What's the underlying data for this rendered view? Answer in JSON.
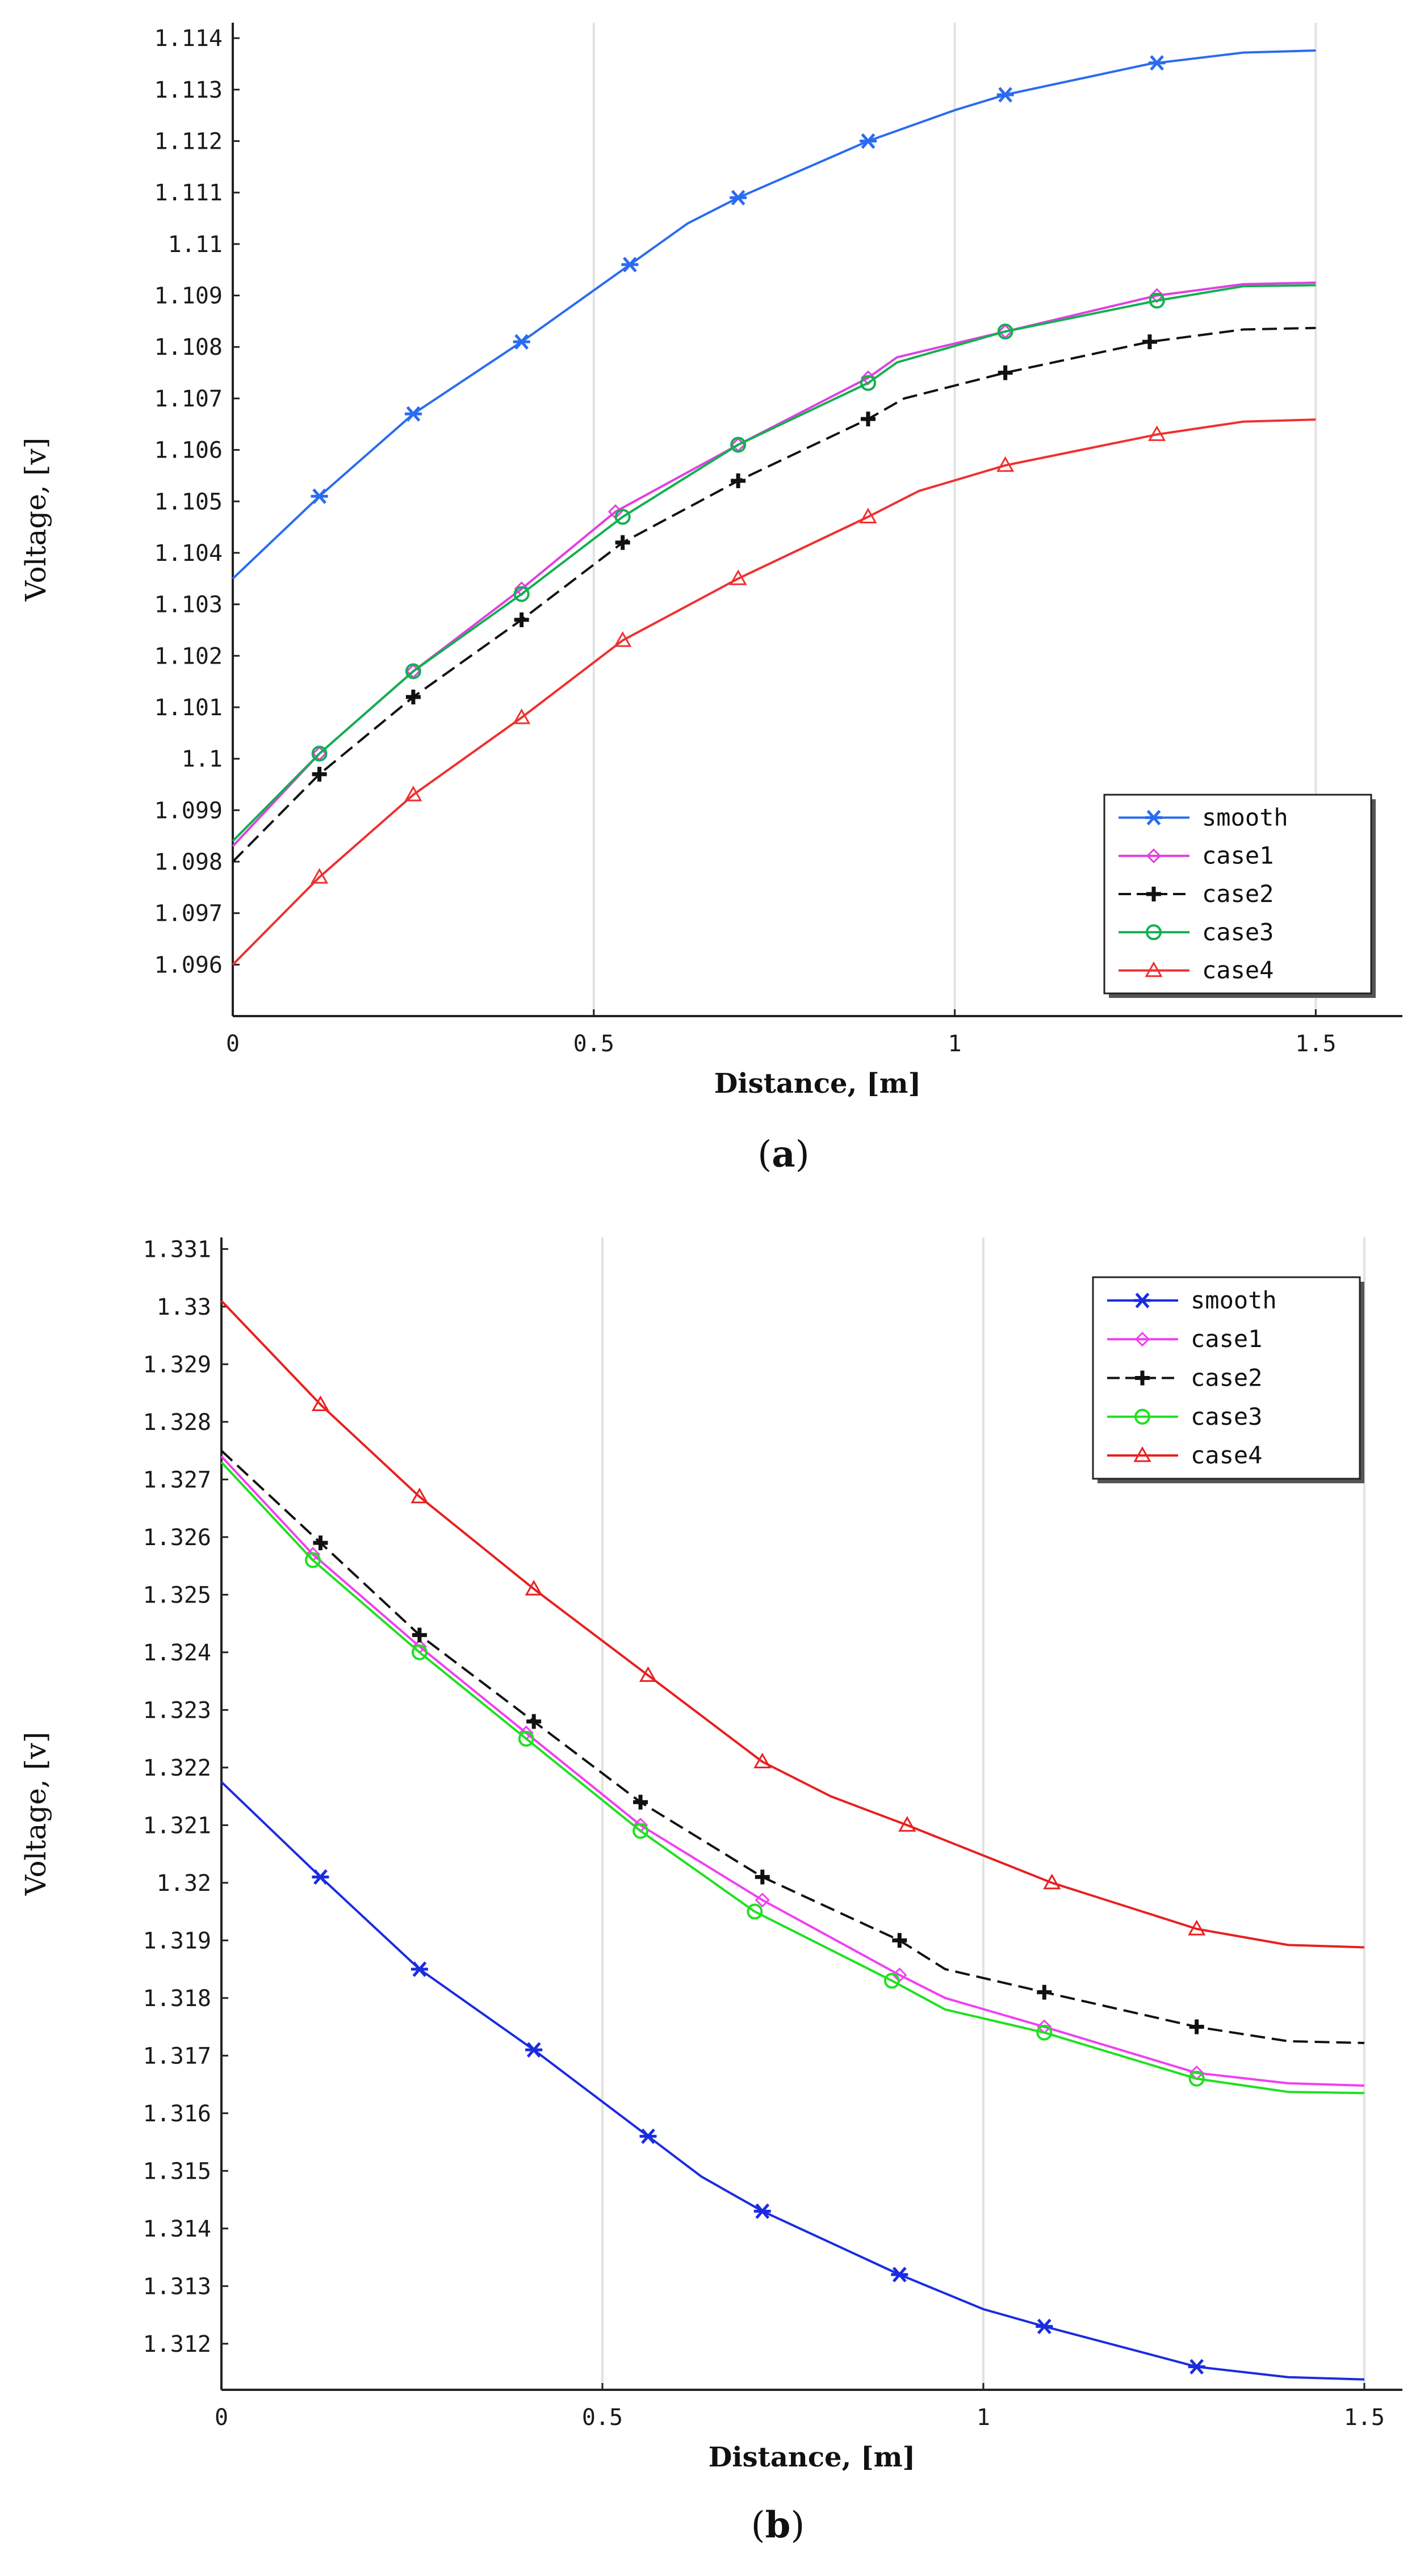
{
  "chart_data": [
    {
      "type": "line",
      "panel_label_open": "(",
      "panel_label": "a",
      "panel_label_close": ")",
      "title": "",
      "xlabel": "Distance, [m]",
      "ylabel": "Voltage, [v]",
      "xlim": [
        0,
        1.62
      ],
      "ylim": [
        1.095,
        1.1143
      ],
      "xticks": [
        0,
        0.5,
        1,
        1.5
      ],
      "xtick_labels": [
        "0",
        "0.5",
        "1",
        "1.5"
      ],
      "yticks": [
        1.096,
        1.097,
        1.098,
        1.099,
        1.1,
        1.101,
        1.102,
        1.103,
        1.104,
        1.105,
        1.106,
        1.107,
        1.108,
        1.109,
        1.11,
        1.111,
        1.112,
        1.113,
        1.114
      ],
      "ytick_labels": [
        "1.096",
        "1.097",
        "1.098",
        "1.099",
        "1.1",
        "1.101",
        "1.102",
        "1.103",
        "1.104",
        "1.105",
        "1.106",
        "1.107",
        "1.108",
        "1.109",
        "1.11",
        "1.111",
        "1.112",
        "1.113",
        "1.114"
      ],
      "grid": true,
      "legend_position": "bottom-right",
      "series": [
        {
          "name": "smooth",
          "color": "#2a6cf0",
          "dash": false,
          "marker": "asterisk",
          "x": [
            0,
            0.12,
            0.25,
            0.4,
            0.55,
            0.63,
            0.7,
            0.88,
            1.0,
            1.07,
            1.27,
            1.4,
            1.5
          ],
          "y": [
            1.1035,
            1.1051,
            1.1067,
            1.1081,
            1.1096,
            1.1104,
            1.1109,
            1.112,
            1.1126,
            1.1129,
            1.1135,
            1.11372,
            1.11376
          ],
          "markers_x": [
            0.12,
            0.25,
            0.4,
            0.55,
            0.7,
            0.88,
            1.07,
            1.28
          ],
          "markers_y": [
            1.1051,
            1.1067,
            1.1081,
            1.1096,
            1.1109,
            1.112,
            1.1129,
            1.11352
          ]
        },
        {
          "name": "case1",
          "color": "#e040e0",
          "dash": false,
          "marker": "diamond",
          "x": [
            0,
            0.12,
            0.25,
            0.4,
            0.53,
            0.7,
            0.88,
            0.92,
            1.07,
            1.28,
            1.4,
            1.5
          ],
          "y": [
            1.0983,
            1.1001,
            1.1017,
            1.1033,
            1.1048,
            1.1061,
            1.1074,
            1.1078,
            1.1083,
            1.109,
            1.10922,
            1.10925
          ],
          "markers_x": [
            0.12,
            0.25,
            0.4,
            0.53,
            0.7,
            0.88,
            1.07,
            1.28
          ],
          "markers_y": [
            1.1001,
            1.1017,
            1.1033,
            1.1048,
            1.1061,
            1.1074,
            1.1083,
            1.109
          ]
        },
        {
          "name": "case2",
          "color": "#111111",
          "dash": true,
          "marker": "plus",
          "x": [
            0,
            0.12,
            0.25,
            0.4,
            0.54,
            0.7,
            0.88,
            0.93,
            1.07,
            1.27,
            1.4,
            1.5
          ],
          "y": [
            1.098,
            1.0997,
            1.1012,
            1.1027,
            1.1042,
            1.1054,
            1.1066,
            1.107,
            1.1075,
            1.1081,
            1.10834,
            1.10837
          ],
          "markers_x": [
            0.12,
            0.25,
            0.4,
            0.54,
            0.7,
            0.88,
            1.07,
            1.27
          ],
          "markers_y": [
            1.0997,
            1.1012,
            1.1027,
            1.1042,
            1.1054,
            1.1066,
            1.1075,
            1.1081
          ]
        },
        {
          "name": "case3",
          "color": "#12b050",
          "dash": false,
          "marker": "circle",
          "x": [
            0,
            0.12,
            0.25,
            0.4,
            0.54,
            0.7,
            0.88,
            0.92,
            1.07,
            1.28,
            1.4,
            1.5
          ],
          "y": [
            1.0984,
            1.1001,
            1.1017,
            1.1032,
            1.1047,
            1.1061,
            1.1073,
            1.1077,
            1.1083,
            1.1089,
            1.10918,
            1.1092
          ],
          "markers_x": [
            0.12,
            0.25,
            0.4,
            0.54,
            0.7,
            0.88,
            1.07,
            1.28
          ],
          "markers_y": [
            1.1001,
            1.1017,
            1.1032,
            1.1047,
            1.1061,
            1.1073,
            1.1083,
            1.1089
          ]
        },
        {
          "name": "case4",
          "color": "#f03030",
          "dash": false,
          "marker": "triangle",
          "x": [
            0,
            0.12,
            0.25,
            0.4,
            0.54,
            0.7,
            0.88,
            0.95,
            1.07,
            1.28,
            1.4,
            1.5
          ],
          "y": [
            1.096,
            1.0977,
            1.0993,
            1.1008,
            1.1023,
            1.1035,
            1.1047,
            1.1052,
            1.1057,
            1.1063,
            1.10655,
            1.10659
          ],
          "markers_x": [
            0.12,
            0.25,
            0.4,
            0.54,
            0.7,
            0.88,
            1.07,
            1.28
          ],
          "markers_y": [
            1.0977,
            1.0993,
            1.1008,
            1.1023,
            1.1035,
            1.1047,
            1.1057,
            1.1063
          ]
        }
      ]
    },
    {
      "type": "line",
      "panel_label_open": "(",
      "panel_label": "b",
      "panel_label_close": ")",
      "title": "",
      "xlabel": "Distance, [m]",
      "ylabel": "Voltage, [v]",
      "xlim": [
        0,
        1.55
      ],
      "ylim": [
        1.3112,
        1.3312
      ],
      "xticks": [
        0,
        0.5,
        1,
        1.5
      ],
      "xtick_labels": [
        "0",
        "0.5",
        "1",
        "1.5"
      ],
      "yticks": [
        1.312,
        1.313,
        1.314,
        1.315,
        1.316,
        1.317,
        1.318,
        1.319,
        1.32,
        1.321,
        1.322,
        1.323,
        1.324,
        1.325,
        1.326,
        1.327,
        1.328,
        1.329,
        1.33,
        1.331
      ],
      "ytick_labels": [
        "1.312",
        "1.313",
        "1.314",
        "1.315",
        "1.316",
        "1.317",
        "1.318",
        "1.319",
        "1.32",
        "1.321",
        "1.322",
        "1.323",
        "1.324",
        "1.325",
        "1.326",
        "1.327",
        "1.328",
        "1.329",
        "1.33",
        "1.331"
      ],
      "grid": true,
      "legend_position": "top-right",
      "series": [
        {
          "name": "smooth",
          "color": "#1a2ce0",
          "dash": false,
          "marker": "asterisk",
          "x": [
            0,
            0.13,
            0.26,
            0.41,
            0.56,
            0.63,
            0.71,
            0.89,
            1.0,
            1.08,
            1.28,
            1.4,
            1.5
          ],
          "y": [
            1.32175,
            1.3201,
            1.3185,
            1.3171,
            1.3156,
            1.3149,
            1.3143,
            1.3132,
            1.3126,
            1.3123,
            1.3116,
            1.31142,
            1.31138
          ],
          "markers_x": [
            0.13,
            0.26,
            0.41,
            0.56,
            0.71,
            0.89,
            1.08,
            1.28
          ],
          "markers_y": [
            1.3201,
            1.3185,
            1.3171,
            1.3156,
            1.3143,
            1.3132,
            1.3123,
            1.3116
          ]
        },
        {
          "name": "case1",
          "color": "#f040f0",
          "dash": false,
          "marker": "diamond",
          "x": [
            0,
            0.12,
            0.26,
            0.4,
            0.55,
            0.71,
            0.89,
            0.95,
            1.08,
            1.28,
            1.4,
            1.5
          ],
          "y": [
            1.3274,
            1.3257,
            1.3241,
            1.3226,
            1.321,
            1.3197,
            1.3184,
            1.318,
            1.3175,
            1.3167,
            1.31652,
            1.31648
          ],
          "markers_x": [
            0.12,
            0.26,
            0.4,
            0.55,
            0.71,
            0.89,
            1.08,
            1.28
          ],
          "markers_y": [
            1.3257,
            1.3241,
            1.3226,
            1.321,
            1.3197,
            1.3184,
            1.3175,
            1.3167
          ]
        },
        {
          "name": "case2",
          "color": "#111111",
          "dash": true,
          "marker": "plus",
          "x": [
            0,
            0.13,
            0.26,
            0.41,
            0.55,
            0.71,
            0.89,
            0.95,
            1.08,
            1.28,
            1.4,
            1.5
          ],
          "y": [
            1.3275,
            1.3259,
            1.3243,
            1.3228,
            1.3214,
            1.3201,
            1.319,
            1.3185,
            1.3181,
            1.3175,
            1.31725,
            1.31722
          ],
          "markers_x": [
            0.13,
            0.26,
            0.41,
            0.55,
            0.71,
            0.89,
            1.08,
            1.28
          ],
          "markers_y": [
            1.3259,
            1.3243,
            1.3228,
            1.3214,
            1.3201,
            1.319,
            1.3181,
            1.3175
          ]
        },
        {
          "name": "case3",
          "color": "#20e020",
          "dash": false,
          "marker": "circle",
          "x": [
            0,
            0.12,
            0.26,
            0.4,
            0.55,
            0.7,
            0.88,
            0.95,
            1.08,
            1.28,
            1.4,
            1.5
          ],
          "y": [
            1.3273,
            1.3256,
            1.324,
            1.3225,
            1.3209,
            1.3195,
            1.3183,
            1.3178,
            1.3174,
            1.3166,
            1.31637,
            1.31635
          ],
          "markers_x": [
            0.12,
            0.26,
            0.4,
            0.55,
            0.7,
            0.88,
            1.08,
            1.28
          ],
          "markers_y": [
            1.3256,
            1.324,
            1.3225,
            1.3209,
            1.3195,
            1.3183,
            1.3174,
            1.3166
          ]
        },
        {
          "name": "case4",
          "color": "#e82020",
          "dash": false,
          "marker": "triangle",
          "x": [
            0,
            0.13,
            0.26,
            0.41,
            0.56,
            0.71,
            0.8,
            0.9,
            1.09,
            1.28,
            1.4,
            1.5
          ],
          "y": [
            1.3301,
            1.3283,
            1.3267,
            1.3251,
            1.3236,
            1.3221,
            1.3215,
            1.321,
            1.32,
            1.3192,
            1.31892,
            1.31888
          ],
          "markers_x": [
            0.13,
            0.26,
            0.41,
            0.56,
            0.71,
            0.9,
            1.09,
            1.28
          ],
          "markers_y": [
            1.3283,
            1.3267,
            1.3251,
            1.3236,
            1.3221,
            1.321,
            1.32,
            1.3192
          ]
        }
      ]
    }
  ]
}
